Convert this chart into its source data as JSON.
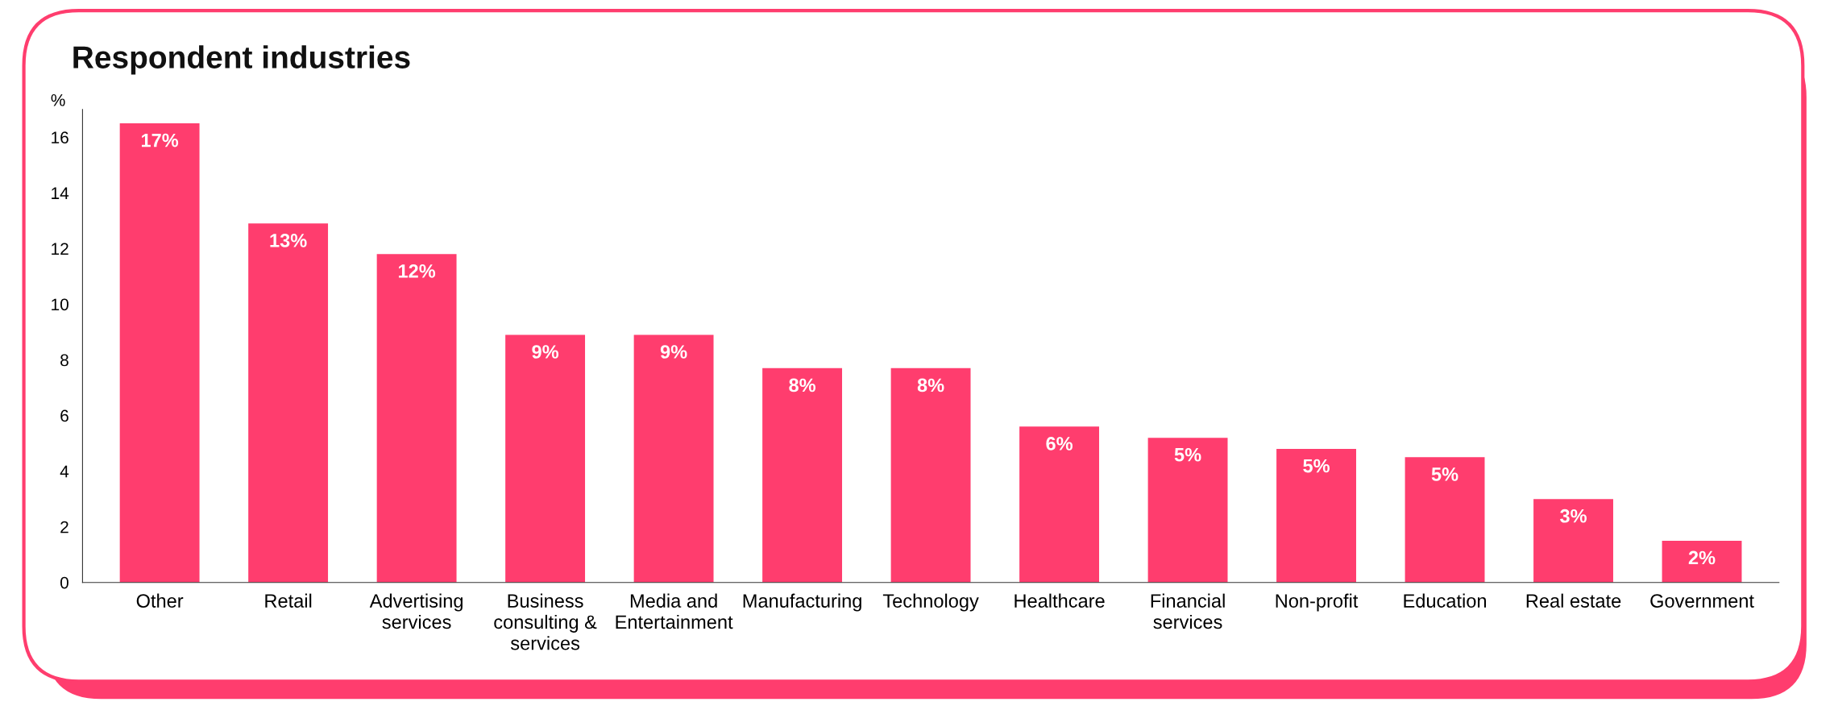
{
  "chart_data": {
    "type": "bar",
    "title": "Respondent industries",
    "ylabel": "%",
    "categories": [
      "Other",
      "Retail",
      "Advertising\nservices",
      "Business\nconsulting &\nservices",
      "Media and\nEntertainment",
      "Manufacturing",
      "Technology",
      "Healthcare",
      "Financial\nservices",
      "Non-profit",
      "Education",
      "Real estate",
      "Government"
    ],
    "values": [
      16.5,
      12.9,
      11.8,
      8.9,
      8.9,
      7.7,
      7.7,
      5.6,
      5.2,
      4.8,
      4.5,
      3.0,
      1.5
    ],
    "value_labels": [
      "17%",
      "13%",
      "12%",
      "9%",
      "9%",
      "8%",
      "8%",
      "6%",
      "5%",
      "5%",
      "5%",
      "3%",
      "2%"
    ],
    "color": "#ff3d6e",
    "ylim": [
      0,
      17
    ],
    "yticks": [
      0,
      2,
      4,
      6,
      8,
      10,
      12,
      14,
      16
    ],
    "grid": false
  }
}
